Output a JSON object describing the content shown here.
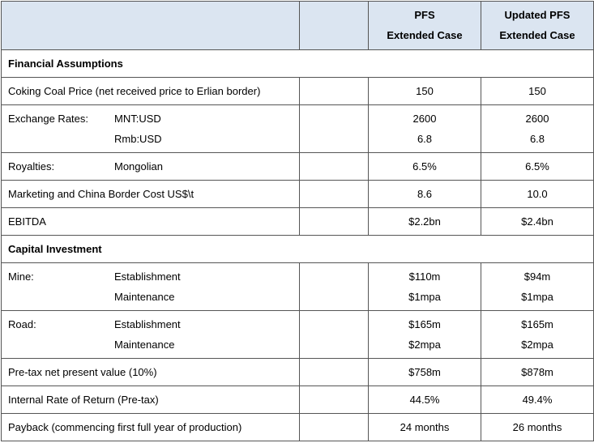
{
  "table": {
    "header": [
      {
        "line1": "PFS",
        "line2": "Extended Case"
      },
      {
        "line1": "Updated PFS",
        "line2": "Extended Case"
      }
    ],
    "rows": [
      {
        "section": "Financial Assumptions"
      },
      {
        "label": "Coking Coal Price (net received price to Erlian border)",
        "items": [
          {
            "values": [
              "150",
              "150"
            ]
          }
        ]
      },
      {
        "label": "Exchange Rates:",
        "items": [
          {
            "sub": "MNT:USD",
            "values": [
              "2600",
              "2600"
            ]
          },
          {
            "sub": "Rmb:USD",
            "values": [
              "6.8",
              "6.8"
            ]
          }
        ]
      },
      {
        "label": "Royalties:",
        "items": [
          {
            "sub": "Mongolian",
            "values": [
              "6.5%",
              "6.5%"
            ]
          }
        ]
      },
      {
        "label": "Marketing and China Border Cost US$\\t",
        "items": [
          {
            "values": [
              "8.6",
              "10.0"
            ]
          }
        ]
      },
      {
        "label": "EBITDA",
        "items": [
          {
            "values": [
              "$2.2bn",
              "$2.4bn"
            ]
          }
        ]
      },
      {
        "section": "Capital Investment"
      },
      {
        "label": "Mine:",
        "items": [
          {
            "sub": "Establishment",
            "values": [
              "$110m",
              "$94m"
            ]
          },
          {
            "sub": "Maintenance",
            "values": [
              "$1mpa",
              "$1mpa"
            ]
          }
        ]
      },
      {
        "label": "Road:",
        "items": [
          {
            "sub": "Establishment",
            "values": [
              "$165m",
              "$165m"
            ]
          },
          {
            "sub": "Maintenance",
            "values": [
              "$2mpa",
              "$2mpa"
            ]
          }
        ]
      },
      {
        "label": "Pre-tax net present value (10%)",
        "items": [
          {
            "values": [
              "$758m",
              "$878m"
            ]
          }
        ]
      },
      {
        "label": "Internal Rate of Return (Pre-tax)",
        "items": [
          {
            "values": [
              "44.5%",
              "49.4%"
            ]
          }
        ]
      },
      {
        "label": "Payback (commencing first full year of production)",
        "items": [
          {
            "values": [
              "24 months",
              "26 months"
            ]
          }
        ]
      }
    ]
  }
}
